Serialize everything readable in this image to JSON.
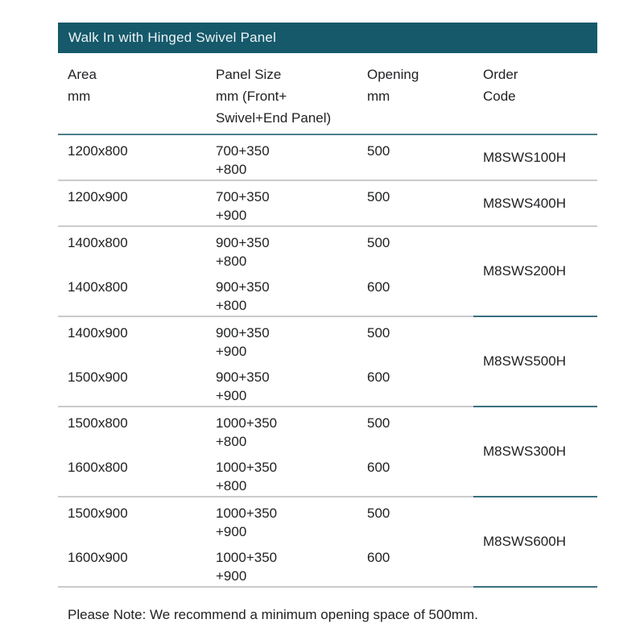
{
  "title_bar": {
    "title": "Walk In with Hinged Swivel Panel"
  },
  "columns": {
    "area": {
      "lines": [
        "Area",
        "mm"
      ]
    },
    "panel": {
      "lines": [
        "Panel Size",
        "mm (Front+",
        "Swivel+End Panel)"
      ]
    },
    "opening": {
      "lines": [
        "Opening",
        "mm"
      ]
    },
    "order": {
      "lines": [
        "Order",
        "Code"
      ]
    }
  },
  "groups": [
    {
      "order_code": "M8SWS100H",
      "rows": [
        {
          "area": "1200x800",
          "panel": [
            "700+350",
            "+800"
          ],
          "opening": "500"
        }
      ]
    },
    {
      "order_code": "M8SWS400H",
      "rows": [
        {
          "area": "1200x900",
          "panel": [
            "700+350",
            "+900"
          ],
          "opening": "500"
        }
      ]
    },
    {
      "order_code": "M8SWS200H",
      "rows": [
        {
          "area": "1400x800",
          "panel": [
            "900+350",
            "+800"
          ],
          "opening": "500"
        },
        {
          "area": "1400x800",
          "panel": [
            "900+350",
            "+800"
          ],
          "opening": "600"
        }
      ]
    },
    {
      "order_code": "M8SWS500H",
      "rows": [
        {
          "area": "1400x900",
          "panel": [
            "900+350",
            "+900"
          ],
          "opening": "500"
        },
        {
          "area": "1500x900",
          "panel": [
            "900+350",
            "+900"
          ],
          "opening": "600"
        }
      ]
    },
    {
      "order_code": "M8SWS300H",
      "rows": [
        {
          "area": "1500x800",
          "panel": [
            "1000+350",
            "+800"
          ],
          "opening": "500"
        },
        {
          "area": "1600x800",
          "panel": [
            "1000+350",
            "+800"
          ],
          "opening": "600"
        }
      ]
    },
    {
      "order_code": "M8SWS600H",
      "rows": [
        {
          "area": "1500x900",
          "panel": [
            "1000+350",
            "+900"
          ],
          "opening": "500"
        },
        {
          "area": "1600x900",
          "panel": [
            "1000+350",
            "+900"
          ],
          "opening": "600"
        }
      ]
    }
  ],
  "note": "Please Note: We recommend a minimum opening space of 500mm.",
  "colors": {
    "header_bar": "#15596b",
    "header_bar_text": "#eef3f5",
    "header_rule": "#4f7d8c",
    "row_divider": "#c9cbcc",
    "order_code_divider": "#39707f",
    "body_text": "#212224"
  }
}
